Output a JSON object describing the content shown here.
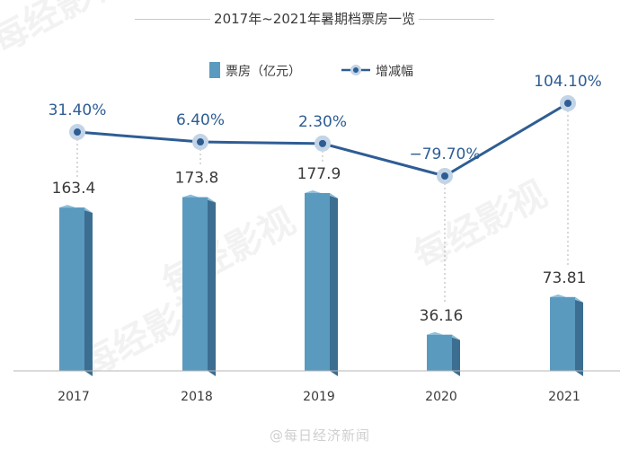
{
  "chart_data": {
    "type": "bar",
    "title": "2017年~2021年暑期档票房一览",
    "categories": [
      "2017",
      "2018",
      "2019",
      "2020",
      "2021"
    ],
    "series": [
      {
        "name": "票房（亿元）",
        "kind": "bar",
        "values": [
          163.4,
          173.8,
          177.9,
          36.16,
          73.81
        ],
        "labels": [
          "163.4",
          "173.8",
          "177.9",
          "36.16",
          "73.81"
        ],
        "color": "#5b9abf"
      },
      {
        "name": "增减幅",
        "kind": "line",
        "values": [
          31.4,
          6.4,
          2.3,
          -79.7,
          104.1
        ],
        "labels": [
          "31.40%",
          "6.40%",
          "2.30%",
          "−79.70%",
          "104.10%"
        ],
        "color": "#2e5d94"
      }
    ],
    "legend_position": "top-center",
    "grid": false
  },
  "watermarks": [
    "每经影视"
  ],
  "credit": "@每日经济新闻",
  "colors": {
    "bar_front": "#5b9abf",
    "bar_side": "#3c6e92",
    "bar_top": "#8fbfda",
    "line": "#2e5d94",
    "marker_halo": "#c3d4e6",
    "axis": "#b5b5b5",
    "guide": "#b0b0b0",
    "text": "#3a3a3a"
  }
}
